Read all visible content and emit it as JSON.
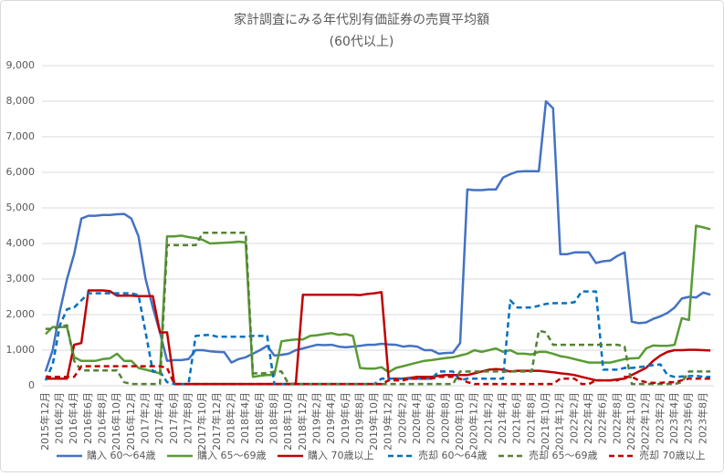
{
  "chart_data": {
    "type": "line",
    "title": "家計調査にみる年代別有価証券の売買平均額",
    "subtitle": "(60代以上)",
    "categories": [
      "2015年12月",
      null,
      "2016年2月",
      null,
      "2016年4月",
      null,
      "2016年6月",
      null,
      "2016年8月",
      null,
      "2016年10月",
      null,
      "2016年12月",
      null,
      "2017年2月",
      null,
      "2017年4月",
      null,
      "2017年6月",
      null,
      "2017年8月",
      null,
      "2017年10月",
      null,
      "2017年12月",
      null,
      "2018年2月",
      null,
      "2018年4月",
      null,
      "2018年6月",
      null,
      "2018年8月",
      null,
      "2018年10月",
      null,
      "2018年12月",
      null,
      "2019年2月",
      null,
      "2019年4月",
      null,
      "2019年6月",
      null,
      "2019年8月",
      null,
      "2019年10月",
      null,
      "2019年12月",
      null,
      "2020年2月",
      null,
      "2020年4月",
      null,
      "2020年6月",
      null,
      "2020年8月",
      null,
      "2020年10月",
      null,
      "2020年12月",
      null,
      "2021年2月",
      null,
      "2021年4月",
      null,
      "2021年6月",
      null,
      "2021年8月",
      null,
      "2021年10月",
      null,
      "2021年12月",
      null,
      "2022年2月",
      null,
      "2022年4月",
      null,
      "2022年6月",
      null,
      "2022年8月",
      null,
      "2022年10月",
      null,
      "2022年12月",
      null,
      "2023年2月",
      null,
      "2023年4月",
      null,
      "2023年6月",
      null,
      "2023年8月",
      null
    ],
    "series": [
      {
        "name": "購入 60～64歳",
        "color": "#4472c4",
        "style": "solid",
        "values": [
          400,
          1000,
          2100,
          3000,
          3700,
          4700,
          4780,
          4780,
          4800,
          4800,
          4820,
          4830,
          4700,
          4200,
          3000,
          2200,
          1500,
          700,
          720,
          720,
          750,
          1000,
          1000,
          970,
          950,
          940,
          650,
          750,
          800,
          900,
          1000,
          1120,
          850,
          870,
          900,
          1000,
          1050,
          1100,
          1150,
          1140,
          1150,
          1100,
          1080,
          1100,
          1120,
          1150,
          1150,
          1180,
          1160,
          1150,
          1100,
          1120,
          1100,
          1000,
          1000,
          900,
          920,
          930,
          1200,
          5520,
          5500,
          5500,
          5520,
          5520,
          5850,
          5950,
          6020,
          6030,
          6030,
          6030,
          8000,
          7800,
          3700,
          3700,
          3750,
          3750,
          3750,
          3450,
          3500,
          3520,
          3650,
          3750,
          1800,
          1760,
          1780,
          1880,
          1950,
          2050,
          2200,
          2450,
          2500,
          2480,
          2620,
          2560
        ]
      },
      {
        "name": "購入 65～69歳",
        "color": "#589b35",
        "style": "solid",
        "values": [
          1450,
          1650,
          1650,
          1650,
          800,
          700,
          700,
          700,
          750,
          770,
          900,
          700,
          700,
          500,
          450,
          400,
          350,
          4200,
          4200,
          4220,
          4180,
          4150,
          4100,
          4000,
          4010,
          4020,
          4030,
          4050,
          4030,
          250,
          280,
          300,
          300,
          1250,
          1280,
          1300,
          1300,
          1400,
          1420,
          1450,
          1480,
          1430,
          1450,
          1400,
          500,
          480,
          480,
          520,
          380,
          500,
          550,
          600,
          650,
          700,
          720,
          750,
          780,
          800,
          850,
          900,
          1000,
          950,
          1000,
          1050,
          950,
          1000,
          900,
          900,
          880,
          950,
          950,
          900,
          830,
          800,
          750,
          700,
          650,
          650,
          650,
          650,
          700,
          750,
          770,
          780,
          1050,
          1130,
          1120,
          1120,
          1150,
          1900,
          1850,
          4500,
          4450,
          4400
        ]
      },
      {
        "name": "購入 70歳以上",
        "color": "#c00000",
        "style": "solid",
        "values": [
          200,
          200,
          200,
          200,
          1150,
          1200,
          2680,
          2680,
          2680,
          2660,
          2530,
          2530,
          2530,
          2520,
          2520,
          2520,
          1500,
          1500,
          50,
          50,
          50,
          50,
          50,
          50,
          50,
          50,
          50,
          50,
          50,
          50,
          50,
          50,
          50,
          50,
          50,
          60,
          2560,
          2560,
          2560,
          2560,
          2560,
          2560,
          2560,
          2560,
          2550,
          2580,
          2600,
          2630,
          200,
          200,
          200,
          220,
          250,
          250,
          250,
          280,
          300,
          300,
          300,
          300,
          350,
          400,
          450,
          470,
          450,
          400,
          420,
          420,
          420,
          420,
          400,
          380,
          350,
          330,
          300,
          250,
          200,
          150,
          150,
          150,
          180,
          200,
          300,
          400,
          500,
          700,
          850,
          950,
          1000,
          1000,
          1010,
          1010,
          1000,
          990
        ]
      },
      {
        "name": "売却 60～64歳",
        "color": "#0070c0",
        "style": "dashed",
        "values": [
          150,
          600,
          1700,
          2150,
          2200,
          2400,
          2600,
          2600,
          2600,
          2600,
          2600,
          2600,
          2600,
          2550,
          1500,
          400,
          400,
          100,
          50,
          50,
          50,
          1400,
          1420,
          1430,
          1380,
          1380,
          1380,
          1380,
          1380,
          1400,
          1400,
          1400,
          50,
          50,
          50,
          50,
          50,
          50,
          50,
          50,
          50,
          50,
          50,
          50,
          50,
          50,
          50,
          200,
          200,
          200,
          200,
          200,
          200,
          200,
          200,
          400,
          400,
          400,
          150,
          200,
          200,
          200,
          200,
          200,
          200,
          2400,
          2200,
          2200,
          2200,
          2250,
          2300,
          2320,
          2320,
          2320,
          2350,
          2650,
          2650,
          2650,
          450,
          450,
          450,
          500,
          500,
          520,
          550,
          580,
          600,
          300,
          250,
          260,
          270,
          280,
          250,
          250
        ]
      },
      {
        "name": "売却 65～69歳",
        "color": "#548235",
        "style": "dashed",
        "values": [
          1600,
          1600,
          1650,
          1700,
          700,
          430,
          430,
          430,
          430,
          430,
          430,
          100,
          50,
          50,
          50,
          50,
          50,
          3950,
          3950,
          3950,
          3950,
          3950,
          4300,
          4300,
          4300,
          4300,
          4300,
          4300,
          4300,
          350,
          350,
          350,
          400,
          400,
          50,
          50,
          50,
          50,
          50,
          50,
          50,
          50,
          50,
          50,
          50,
          50,
          50,
          50,
          50,
          50,
          50,
          50,
          50,
          50,
          50,
          50,
          50,
          50,
          400,
          400,
          400,
          400,
          400,
          400,
          400,
          400,
          400,
          400,
          400,
          1550,
          1500,
          1150,
          1150,
          1150,
          1150,
          1150,
          1150,
          1150,
          1150,
          1150,
          1150,
          1100,
          50,
          50,
          50,
          50,
          50,
          50,
          50,
          100,
          400,
          400,
          400,
          400
        ]
      },
      {
        "name": "売却 70歳以上",
        "color": "#c00000",
        "style": "dashed",
        "values": [
          250,
          250,
          250,
          250,
          250,
          550,
          550,
          550,
          550,
          550,
          550,
          550,
          550,
          550,
          550,
          550,
          550,
          500,
          50,
          50,
          50,
          50,
          50,
          50,
          50,
          50,
          50,
          50,
          50,
          50,
          50,
          50,
          50,
          50,
          50,
          50,
          50,
          50,
          50,
          50,
          50,
          50,
          50,
          50,
          50,
          50,
          50,
          50,
          150,
          150,
          150,
          200,
          200,
          200,
          200,
          250,
          250,
          250,
          200,
          100,
          50,
          50,
          50,
          50,
          50,
          50,
          50,
          50,
          50,
          50,
          50,
          50,
          200,
          200,
          200,
          50,
          50,
          150,
          150,
          150,
          150,
          250,
          250,
          150,
          100,
          80,
          80,
          100,
          100,
          150,
          200,
          200,
          200,
          200
        ]
      }
    ],
    "ylim": [
      0,
      9000
    ],
    "yticks": [
      0,
      {
        "value": 1000,
        "label": "1,000"
      },
      {
        "value": 2000,
        "label": "2,000"
      },
      {
        "value": 3000,
        "label": "3,000"
      },
      {
        "value": 4000,
        "label": "4,000"
      },
      {
        "value": 5000,
        "label": "5,000"
      },
      {
        "value": 6000,
        "label": "6,000"
      },
      {
        "value": 7000,
        "label": "7,000"
      },
      {
        "value": 8000,
        "label": "8,000"
      },
      {
        "value": 9000,
        "label": "9,000"
      }
    ],
    "grid": true,
    "legend": "bottom"
  }
}
